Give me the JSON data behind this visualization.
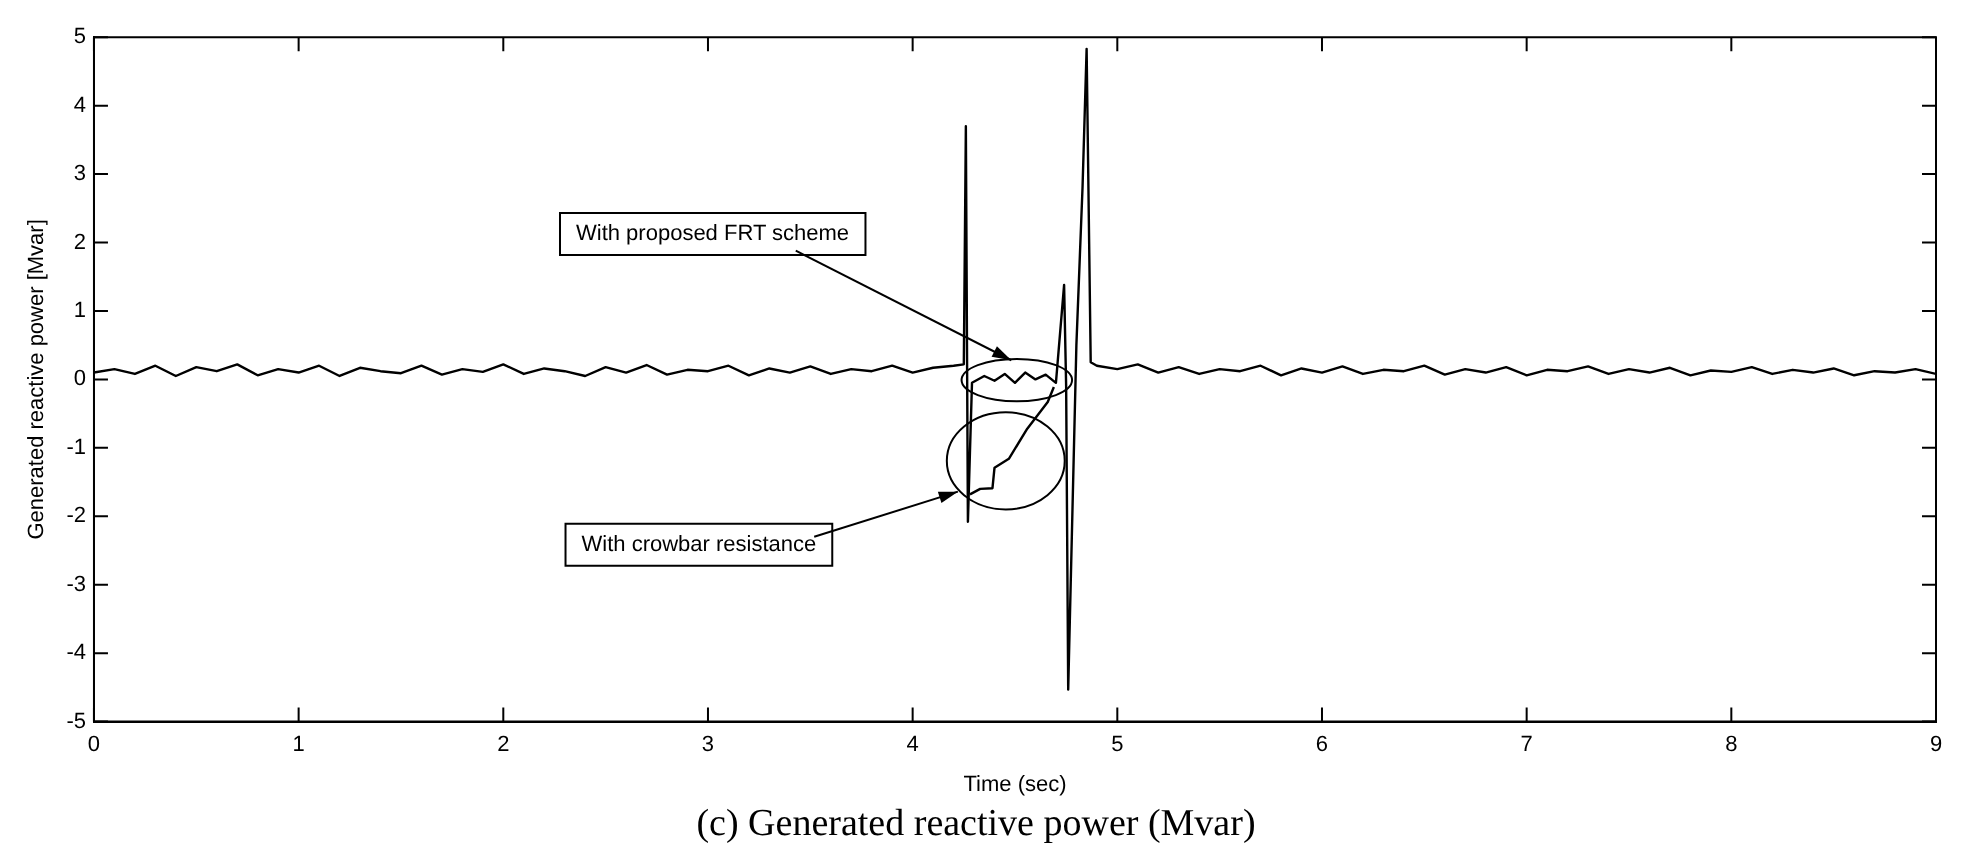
{
  "chart_data": {
    "type": "line",
    "title": "(c) Generated reactive power (Mvar)",
    "xlabel": "Time (sec)",
    "ylabel": "Generated reactive power [Mvar]",
    "xlim": [
      0,
      9
    ],
    "xticks": [
      0,
      1,
      2,
      3,
      4,
      5,
      6,
      7,
      8,
      9
    ],
    "ylim": [
      -5,
      5
    ],
    "yticks": [
      -5,
      -4,
      -3,
      -2,
      -1,
      0,
      1,
      2,
      3,
      4,
      5
    ],
    "grid": false,
    "legend": false,
    "marker": "none",
    "line_style": "solid",
    "series": [
      {
        "color": "#000000",
        "x": [
          0,
          0.1,
          0.2,
          0.3,
          0.4,
          0.5,
          0.6,
          0.7,
          0.8,
          0.9,
          1,
          1.1,
          1.2,
          1.3,
          1.4,
          1.5,
          1.6,
          1.7,
          1.8,
          1.9,
          2,
          2.1,
          2.2,
          2.3,
          2.4,
          2.5,
          2.6,
          2.7,
          2.8,
          2.9,
          3,
          3.1,
          3.2,
          3.3,
          3.4,
          3.5,
          3.6,
          3.7,
          3.8,
          3.9,
          4,
          4.1,
          4.2,
          4.25,
          4.26,
          4.27,
          4.29,
          4.35,
          4.4,
          4.45,
          4.5,
          4.55,
          4.6,
          4.65,
          4.7,
          4.74,
          4.75,
          4.76,
          4.8,
          4.83,
          4.85,
          4.87,
          4.9,
          5,
          5.1,
          5.2,
          5.3,
          5.4,
          5.5,
          5.6,
          5.7,
          5.8,
          5.9,
          6,
          6.1,
          6.2,
          6.3,
          6.4,
          6.5,
          6.6,
          6.7,
          6.8,
          6.9,
          7,
          7.1,
          7.2,
          7.3,
          7.4,
          7.5,
          7.6,
          7.7,
          7.8,
          7.9,
          8,
          8.1,
          8.2,
          8.3,
          8.4,
          8.5,
          8.6,
          8.7,
          8.8,
          8.9,
          9
        ],
        "values": [
          0.1,
          0.15,
          0.08,
          0.2,
          0.05,
          0.18,
          0.12,
          0.22,
          0.06,
          0.15,
          0.1,
          0.2,
          0.05,
          0.17,
          0.12,
          0.09,
          0.2,
          0.07,
          0.15,
          0.11,
          0.22,
          0.08,
          0.16,
          0.12,
          0.05,
          0.18,
          0.1,
          0.21,
          0.07,
          0.14,
          0.12,
          0.2,
          0.06,
          0.16,
          0.1,
          0.19,
          0.08,
          0.15,
          0.12,
          0.2,
          0.1,
          0.17,
          0.2,
          0.22,
          3.7,
          -2.08,
          -0.05,
          0.05,
          -0.02,
          0.08,
          -0.05,
          0.1,
          0,
          0.07,
          -0.05,
          1.38,
          -0.1,
          -4.53,
          0.5,
          2.8,
          4.83,
          0.25,
          0.2,
          0.15,
          0.22,
          0.1,
          0.18,
          0.08,
          0.15,
          0.12,
          0.2,
          0.06,
          0.16,
          0.1,
          0.19,
          0.08,
          0.14,
          0.12,
          0.2,
          0.07,
          0.15,
          0.1,
          0.18,
          0.06,
          0.14,
          0.12,
          0.19,
          0.08,
          0.15,
          0.1,
          0.17,
          0.06,
          0.13,
          0.11,
          0.18,
          0.08,
          0.14,
          0.1,
          0.16,
          0.06,
          0.12,
          0.1,
          0.15,
          0.08
        ]
      },
      {
        "color": "#000000",
        "x": [
          4.28,
          4.33,
          4.39,
          4.4,
          4.47,
          4.56,
          4.66,
          4.69
        ],
        "values": [
          -1.68,
          -1.6,
          -1.59,
          -1.29,
          -1.16,
          -0.72,
          -0.33,
          -0.11
        ]
      }
    ],
    "annotations": [
      "With proposed FRT scheme",
      "With crowbar resistance"
    ]
  }
}
